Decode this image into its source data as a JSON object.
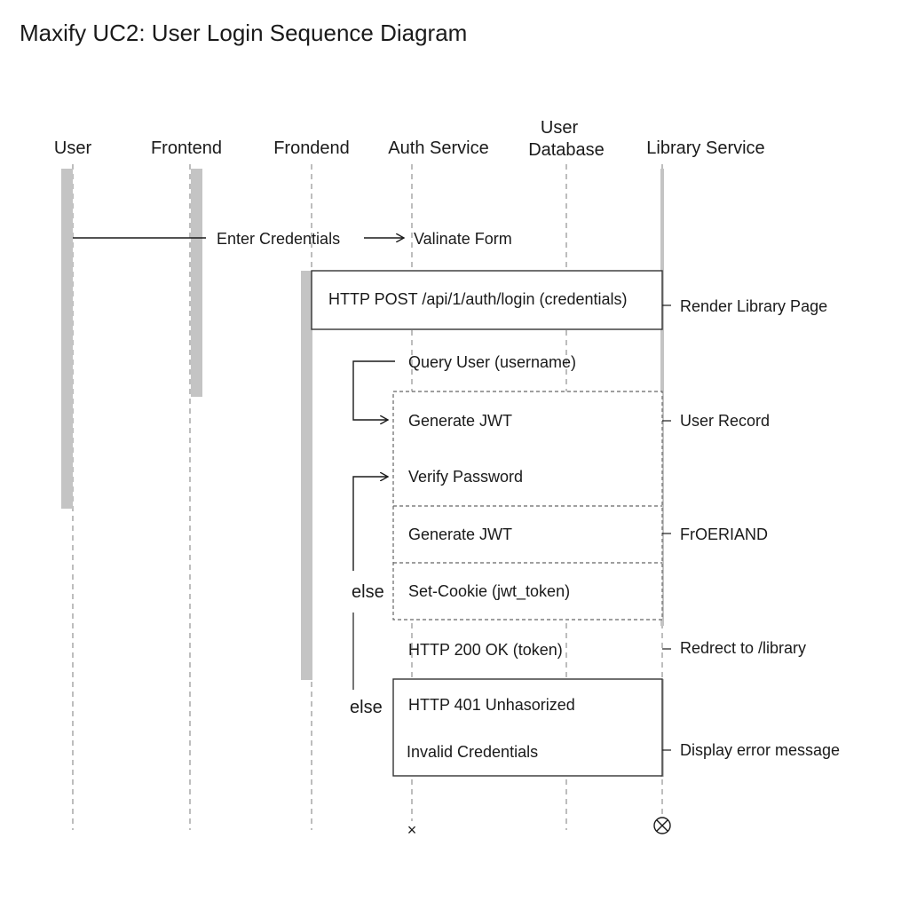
{
  "title": "Maxify UC2: User Login Sequence Diagram",
  "lanes": [
    {
      "label": "User"
    },
    {
      "label": "Frontend"
    },
    {
      "label": "Frondend"
    },
    {
      "label": "Auth Service"
    },
    {
      "label_line1": "User",
      "label_line2": "Database"
    },
    {
      "label": "Library Service"
    }
  ],
  "messages": {
    "enter_credentials": "Enter Credentials",
    "validate_form": "Valinate Form",
    "http_post": "HTTP POST /api/1/auth/login (credentials)",
    "render_library": "Render Library Page",
    "query_user": "Query User (username)",
    "generate_jwt_1": "Generate JWT",
    "user_record": "User Record",
    "verify_password": "Verify Password",
    "generate_jwt_2": "Generate JWT",
    "froeriand": "FrOERIAND",
    "set_cookie": "Set-Cookie (jwt_token)",
    "http_200": "HTTP 200 OK (token)",
    "redirect": "Redrect to /library",
    "http_401": "HTTP 401 Unhasorized",
    "invalid_credentials": "Invalid Credentials",
    "display_error": "Display error message"
  },
  "guards": {
    "else_1": "else",
    "else_2": "else"
  },
  "end_marks": {
    "auth_end": "×"
  }
}
